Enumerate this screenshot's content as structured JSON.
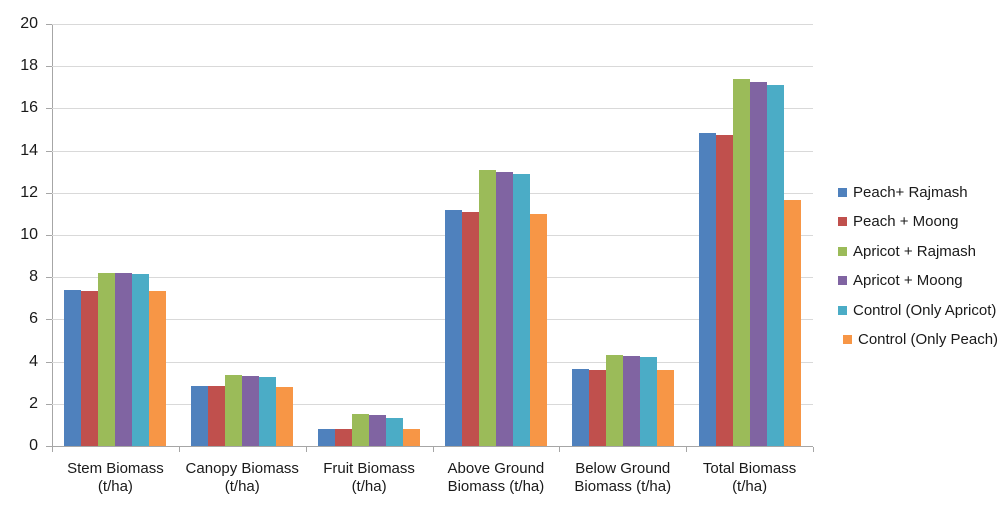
{
  "chart_data": {
    "type": "bar",
    "title": "",
    "xlabel": "",
    "ylabel": "",
    "ylim": [
      0,
      20
    ],
    "ytick_step": 2,
    "ytick_labels": [
      "0",
      "2",
      "4",
      "6",
      "8",
      "10",
      "12",
      "14",
      "16",
      "18",
      "20"
    ],
    "grid": true,
    "legend_position": "right",
    "categories": [
      {
        "line1": "Stem Biomass",
        "line2": "(t/ha)"
      },
      {
        "line1": "Canopy Biomass",
        "line2": "(t/ha)"
      },
      {
        "line1": "Fruit Biomass",
        "line2": "(t/ha)"
      },
      {
        "line1": "Above Ground",
        "line2": "Biomass (t/ha)"
      },
      {
        "line1": "Below Ground",
        "line2": "Biomass (t/ha)"
      },
      {
        "line1": "Total Biomass",
        "line2": "(t/ha)"
      }
    ],
    "series": [
      {
        "name": "Peach+ Rajmash",
        "color": "#4F81BD",
        "values": [
          7.4,
          2.85,
          0.8,
          11.2,
          3.65,
          14.85
        ]
      },
      {
        "name": "Peach + Moong",
        "color": "#C0504D",
        "values": [
          7.35,
          2.85,
          0.8,
          11.1,
          3.6,
          14.75
        ]
      },
      {
        "name": "Apricot + Rajmash",
        "color": "#9BBB59",
        "values": [
          8.2,
          3.35,
          1.5,
          13.1,
          4.3,
          17.4
        ]
      },
      {
        "name": "Apricot + Moong",
        "color": "#8064A2",
        "values": [
          8.2,
          3.3,
          1.45,
          13.0,
          4.25,
          17.25
        ]
      },
      {
        "name": "Control (Only Apricot)",
        "color": "#4BACC6",
        "values": [
          8.15,
          3.25,
          1.35,
          12.9,
          4.2,
          17.1
        ]
      },
      {
        "name": " Control (Only Peach)",
        "color": "#F79646",
        "values": [
          7.35,
          2.8,
          0.8,
          11.0,
          3.6,
          11.65
        ]
      }
    ]
  },
  "colors": {
    "background": "#FFFFFF",
    "gridline": "#D9D9D9",
    "axis": "#A6A6A6",
    "text": "#1A1A1A"
  }
}
